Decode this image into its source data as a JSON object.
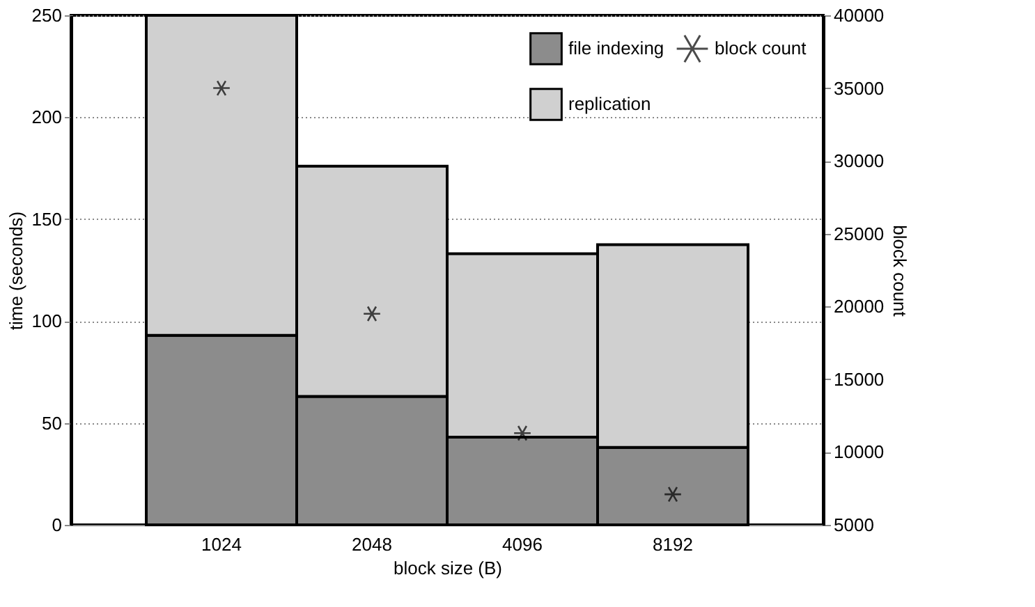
{
  "chart_data": {
    "type": "bar",
    "stacked": true,
    "xlabel": "block size (B)",
    "ylabel": "time (seconds)",
    "y2label": "block count",
    "categories": [
      "1024",
      "2048",
      "4096",
      "8192"
    ],
    "series": [
      {
        "name": "file indexing",
        "color": "#8c8c8c",
        "values": [
          93,
          63,
          43,
          38
        ]
      },
      {
        "name": "replication",
        "color": "#d0d0d0",
        "values": [
          157,
          113,
          90,
          99.5
        ]
      },
      {
        "name": "block count",
        "type": "scatter",
        "axis": "y2",
        "color": "#000000",
        "values": [
          35000,
          19500,
          11300,
          7100
        ]
      }
    ],
    "ylim": [
      0,
      250
    ],
    "yticks": [
      0,
      50,
      100,
      150,
      200,
      250
    ],
    "y2lim": [
      5000,
      40000
    ],
    "y2ticks": [
      5000,
      10000,
      15000,
      20000,
      25000,
      30000,
      35000,
      40000
    ],
    "grid": "y",
    "legend": "top right",
    "marker": "cross"
  }
}
